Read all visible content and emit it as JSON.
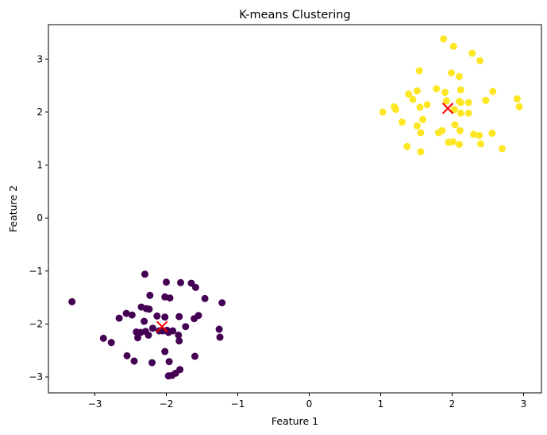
{
  "chart_data": {
    "type": "scatter",
    "title": "K-means Clustering",
    "xlabel": "Feature 1",
    "ylabel": "Feature 2",
    "xlim": [
      -3.65,
      3.25
    ],
    "ylim": [
      -3.3,
      3.65
    ],
    "xticks": [
      -3,
      -2,
      -1,
      0,
      1,
      2,
      3
    ],
    "yticks": [
      -3,
      -2,
      -1,
      0,
      1,
      2,
      3
    ],
    "xtick_labels": [
      "−3",
      "−2",
      "−1",
      "0",
      "1",
      "2",
      "3"
    ],
    "ytick_labels": [
      "−3",
      "−2",
      "−1",
      "0",
      "1",
      "2",
      "3"
    ],
    "grid": false,
    "legend": "none",
    "series": [
      {
        "color": "#440154",
        "points": [
          [
            -3.32,
            -1.58
          ],
          [
            -2.3,
            -1.06
          ],
          [
            -2.0,
            -1.21
          ],
          [
            -1.8,
            -1.22
          ],
          [
            -1.65,
            -1.23
          ],
          [
            -1.59,
            -1.31
          ],
          [
            -1.22,
            -1.6
          ],
          [
            -2.23,
            -1.46
          ],
          [
            -2.02,
            -1.49
          ],
          [
            -1.95,
            -1.51
          ],
          [
            -1.46,
            -1.52
          ],
          [
            -2.35,
            -1.68
          ],
          [
            -2.28,
            -1.71
          ],
          [
            -2.24,
            -1.72
          ],
          [
            -2.56,
            -1.8
          ],
          [
            -2.48,
            -1.83
          ],
          [
            -2.66,
            -1.89
          ],
          [
            -1.61,
            -1.9
          ],
          [
            -1.55,
            -1.84
          ],
          [
            -1.82,
            -1.86
          ],
          [
            -2.31,
            -1.95
          ],
          [
            -2.13,
            -1.85
          ],
          [
            -2.02,
            -1.87
          ],
          [
            -1.73,
            -2.05
          ],
          [
            -2.42,
            -2.15
          ],
          [
            -2.36,
            -2.16
          ],
          [
            -2.29,
            -2.14
          ],
          [
            -2.19,
            -2.08
          ],
          [
            -2.1,
            -2.13
          ],
          [
            -2.05,
            -2.13
          ],
          [
            -1.99,
            -2.12
          ],
          [
            -1.91,
            -2.13
          ],
          [
            -2.4,
            -2.26
          ],
          [
            -2.25,
            -2.21
          ],
          [
            -1.97,
            -2.16
          ],
          [
            -1.83,
            -2.21
          ],
          [
            -1.26,
            -2.1
          ],
          [
            -1.25,
            -2.25
          ],
          [
            -2.88,
            -2.27
          ],
          [
            -2.77,
            -2.35
          ],
          [
            -1.82,
            -2.32
          ],
          [
            -2.02,
            -2.52
          ],
          [
            -2.55,
            -2.6
          ],
          [
            -1.6,
            -2.61
          ],
          [
            -2.45,
            -2.7
          ],
          [
            -2.2,
            -2.73
          ],
          [
            -1.96,
            -2.71
          ],
          [
            -1.81,
            -2.86
          ],
          [
            -1.87,
            -2.93
          ],
          [
            -1.92,
            -2.97
          ],
          [
            -1.97,
            -2.98
          ]
        ]
      },
      {
        "color": "#fde725",
        "points": [
          [
            1.88,
            3.38
          ],
          [
            2.02,
            3.24
          ],
          [
            2.28,
            3.11
          ],
          [
            2.39,
            2.97
          ],
          [
            1.54,
            2.78
          ],
          [
            1.99,
            2.74
          ],
          [
            2.1,
            2.67
          ],
          [
            1.78,
            2.44
          ],
          [
            2.12,
            2.42
          ],
          [
            2.57,
            2.39
          ],
          [
            1.51,
            2.4
          ],
          [
            1.39,
            2.34
          ],
          [
            1.9,
            2.37
          ],
          [
            1.45,
            2.24
          ],
          [
            2.47,
            2.22
          ],
          [
            2.91,
            2.25
          ],
          [
            1.92,
            2.21
          ],
          [
            2.1,
            2.2
          ],
          [
            2.12,
            2.18
          ],
          [
            2.23,
            2.18
          ],
          [
            1.65,
            2.14
          ],
          [
            1.55,
            2.09
          ],
          [
            1.19,
            2.1
          ],
          [
            1.21,
            2.05
          ],
          [
            1.03,
            2.0
          ],
          [
            2.03,
            2.05
          ],
          [
            2.12,
            1.98
          ],
          [
            2.23,
            1.98
          ],
          [
            2.94,
            2.1
          ],
          [
            1.59,
            1.86
          ],
          [
            1.3,
            1.81
          ],
          [
            2.04,
            1.76
          ],
          [
            1.51,
            1.74
          ],
          [
            1.86,
            1.65
          ],
          [
            1.81,
            1.61
          ],
          [
            1.56,
            1.61
          ],
          [
            2.11,
            1.65
          ],
          [
            2.3,
            1.58
          ],
          [
            2.38,
            1.56
          ],
          [
            2.56,
            1.6
          ],
          [
            1.95,
            1.43
          ],
          [
            2.01,
            1.44
          ],
          [
            2.1,
            1.39
          ],
          [
            2.4,
            1.4
          ],
          [
            1.37,
            1.35
          ],
          [
            2.7,
            1.31
          ],
          [
            1.56,
            1.25
          ]
        ]
      }
    ],
    "centroids": {
      "color": "#ff0000",
      "marker": "x",
      "points": [
        [
          -2.06,
          -2.05
        ],
        [
          1.94,
          2.07
        ]
      ]
    }
  }
}
